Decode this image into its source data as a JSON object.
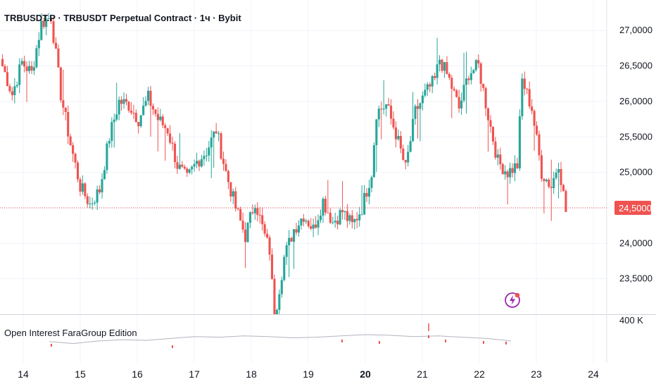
{
  "header": {
    "title": "TRBUSDT.P · TRBUSDT Perpetual Contract · 1ч · Bybit"
  },
  "indicator": {
    "title": "Open Interest FaraGroup Edition",
    "scale_label": "400 K"
  },
  "colors": {
    "up": "#26a69a",
    "down": "#ef5350",
    "price_line": "#ef5350",
    "grid": "#f0f3fa",
    "axis_text": "#131722",
    "oi_line": "#b2b5be",
    "lightning": "#9c27b0"
  },
  "icons": {
    "alert": "lightning-icon"
  },
  "chart_data": {
    "type": "candlestick",
    "y_axis": {
      "ticks": [
        "27,0000",
        "26,5000",
        "26,0000",
        "25,5000",
        "25,0000",
        "24,0000",
        "23,5000"
      ],
      "tick_values": [
        27.0,
        26.5,
        26.0,
        25.5,
        25.0,
        24.0,
        23.5
      ],
      "range": [
        23.0,
        27.35
      ]
    },
    "x_axis": {
      "labels": [
        "14",
        "15",
        "16",
        "17",
        "18",
        "19",
        "20",
        "21",
        "22",
        "23",
        "24"
      ],
      "bold": [
        "20"
      ]
    },
    "current_price": {
      "value": 24.5,
      "label": "24,5000"
    },
    "price_path": [
      [
        0,
        26.5
      ],
      [
        4,
        26.1
      ],
      [
        8,
        26.55
      ],
      [
        12,
        26.4
      ],
      [
        16,
        27.1
      ],
      [
        20,
        27.2
      ],
      [
        24,
        26.1
      ],
      [
        28,
        25.4
      ],
      [
        32,
        24.8
      ],
      [
        36,
        24.55
      ],
      [
        40,
        24.75
      ],
      [
        44,
        25.5
      ],
      [
        48,
        26.0
      ],
      [
        52,
        25.95
      ],
      [
        56,
        25.75
      ],
      [
        60,
        26.05
      ],
      [
        64,
        25.75
      ],
      [
        68,
        25.6
      ],
      [
        72,
        25.1
      ],
      [
        76,
        24.9
      ],
      [
        80,
        25.15
      ],
      [
        84,
        25.3
      ],
      [
        88,
        25.6
      ],
      [
        92,
        25.0
      ],
      [
        96,
        24.5
      ],
      [
        100,
        24.1
      ],
      [
        104,
        24.6
      ],
      [
        108,
        24.1
      ],
      [
        110,
        23.9
      ],
      [
        112,
        22.95
      ],
      [
        116,
        23.8
      ],
      [
        120,
        24.2
      ],
      [
        124,
        24.4
      ],
      [
        128,
        24.2
      ],
      [
        132,
        24.6
      ],
      [
        136,
        24.3
      ],
      [
        140,
        24.45
      ],
      [
        144,
        24.25
      ],
      [
        148,
        24.5
      ],
      [
        152,
        25.0
      ],
      [
        154,
        25.85
      ],
      [
        158,
        25.95
      ],
      [
        162,
        25.55
      ],
      [
        166,
        25.05
      ],
      [
        170,
        25.85
      ],
      [
        174,
        26.1
      ],
      [
        178,
        26.3
      ],
      [
        180,
        26.6
      ],
      [
        184,
        26.3
      ],
      [
        188,
        25.9
      ],
      [
        192,
        26.4
      ],
      [
        196,
        26.5
      ],
      [
        200,
        25.8
      ],
      [
        204,
        25.15
      ],
      [
        208,
        25.0
      ],
      [
        212,
        25.1
      ],
      [
        214,
        26.3
      ],
      [
        218,
        25.9
      ],
      [
        222,
        25.0
      ],
      [
        226,
        24.8
      ],
      [
        229,
        25.15
      ],
      [
        232,
        24.45
      ]
    ],
    "open_interest": {
      "values": [
        0.45,
        0.3,
        0.5,
        0.6,
        0.55,
        0.7,
        0.85,
        0.8,
        0.9,
        0.85,
        0.75,
        0.8,
        0.9,
        1.0,
        0.95,
        0.85,
        0.9,
        0.8,
        0.7,
        0.5
      ]
    }
  }
}
